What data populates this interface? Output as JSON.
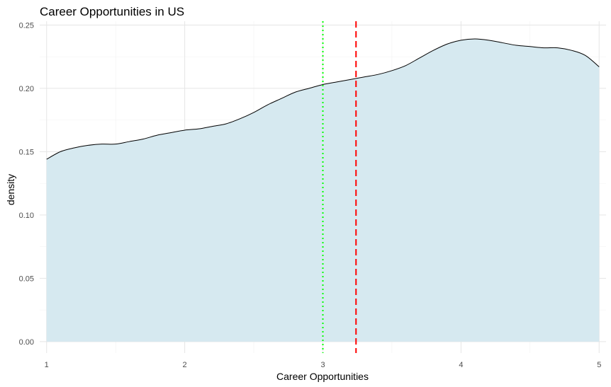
{
  "chart_data": {
    "type": "area",
    "title": "Career Opportunities in  US",
    "xlabel": "Career Opportunities",
    "ylabel": "density",
    "xlim": [
      0.95,
      5.05
    ],
    "ylim": [
      -0.009,
      0.253
    ],
    "x_ticks": [
      "1",
      "2",
      "3",
      "4",
      "5"
    ],
    "y_ticks": [
      "0.00",
      "0.05",
      "0.10",
      "0.15",
      "0.20",
      "0.25"
    ],
    "grid": true,
    "legend": "none",
    "series": [
      {
        "x": [
          1.0,
          1.1,
          1.2,
          1.3,
          1.4,
          1.5,
          1.6,
          1.7,
          1.8,
          1.9,
          2.0,
          2.1,
          2.2,
          2.3,
          2.4,
          2.5,
          2.6,
          2.7,
          2.8,
          2.9,
          3.0,
          3.1,
          3.2,
          3.3,
          3.4,
          3.5,
          3.6,
          3.7,
          3.8,
          3.9,
          4.0,
          4.1,
          4.2,
          4.3,
          4.4,
          4.5,
          4.6,
          4.7,
          4.8,
          4.9,
          5.0
        ],
        "y": [
          0.144,
          0.15,
          0.153,
          0.155,
          0.156,
          0.156,
          0.158,
          0.16,
          0.163,
          0.165,
          0.167,
          0.168,
          0.17,
          0.172,
          0.176,
          0.181,
          0.187,
          0.192,
          0.197,
          0.2,
          0.203,
          0.205,
          0.207,
          0.209,
          0.211,
          0.214,
          0.218,
          0.224,
          0.23,
          0.235,
          0.238,
          0.239,
          0.238,
          0.236,
          0.234,
          0.233,
          0.232,
          0.232,
          0.23,
          0.226,
          0.217
        ],
        "fill": "#d6e9f0",
        "stroke": "#000000"
      }
    ],
    "vlines": [
      {
        "x": 3.0,
        "color": "#00ff00",
        "style": "dotted"
      },
      {
        "x": 3.24,
        "color": "#ff0000",
        "style": "dashed"
      }
    ]
  }
}
